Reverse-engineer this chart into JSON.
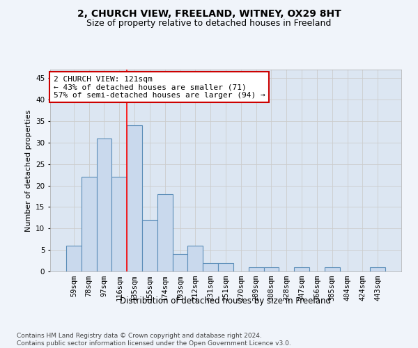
{
  "title": "2, CHURCH VIEW, FREELAND, WITNEY, OX29 8HT",
  "subtitle": "Size of property relative to detached houses in Freeland",
  "xlabel": "Distribution of detached houses by size in Freeland",
  "ylabel": "Number of detached properties",
  "categories": [
    "59sqm",
    "78sqm",
    "97sqm",
    "116sqm",
    "135sqm",
    "155sqm",
    "174sqm",
    "193sqm",
    "212sqm",
    "231sqm",
    "251sqm",
    "270sqm",
    "289sqm",
    "308sqm",
    "328sqm",
    "347sqm",
    "366sqm",
    "385sqm",
    "404sqm",
    "424sqm",
    "443sqm"
  ],
  "values": [
    6,
    22,
    31,
    22,
    34,
    12,
    18,
    4,
    6,
    2,
    2,
    0,
    1,
    1,
    0,
    1,
    0,
    1,
    0,
    0,
    1
  ],
  "bar_color": "#c9d9ed",
  "bar_edgecolor": "#5b8db8",
  "red_line_x": 3,
  "annotation_text": "2 CHURCH VIEW: 121sqm\n← 43% of detached houses are smaller (71)\n57% of semi-detached houses are larger (94) →",
  "annotation_box_color": "#ffffff",
  "annotation_box_edgecolor": "#cc0000",
  "ylim": [
    0,
    47
  ],
  "yticks": [
    0,
    5,
    10,
    15,
    20,
    25,
    30,
    35,
    40,
    45
  ],
  "grid_color": "#cccccc",
  "fig_bg_color": "#f0f4fa",
  "plot_bg_color": "#dce6f2",
  "footer_text": "Contains HM Land Registry data © Crown copyright and database right 2024.\nContains public sector information licensed under the Open Government Licence v3.0.",
  "title_fontsize": 10,
  "subtitle_fontsize": 9,
  "xlabel_fontsize": 8.5,
  "ylabel_fontsize": 8,
  "tick_fontsize": 7.5,
  "annotation_fontsize": 8,
  "footer_fontsize": 6.5
}
